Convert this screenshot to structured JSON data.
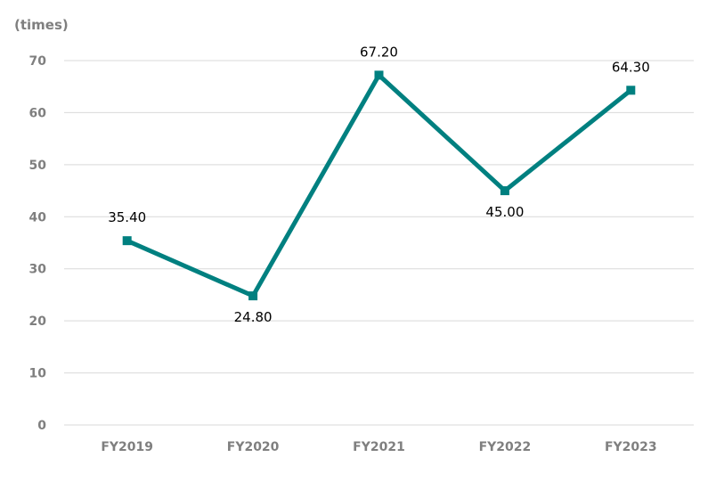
{
  "chart_data": {
    "type": "line",
    "unit_label": "(times)",
    "categories": [
      "FY2019",
      "FY2020",
      "FY2021",
      "FY2022",
      "FY2023"
    ],
    "series": [
      {
        "values": [
          35.4,
          24.8,
          67.2,
          45.0,
          64.3
        ],
        "data_labels": [
          "35.40",
          "24.80",
          "67.20",
          "45.00",
          "64.30"
        ],
        "color": "#008080"
      }
    ],
    "ylim": [
      0,
      70
    ],
    "yticks": [
      0,
      10,
      20,
      30,
      40,
      50,
      60,
      70
    ],
    "grid": true,
    "legend": "none"
  }
}
